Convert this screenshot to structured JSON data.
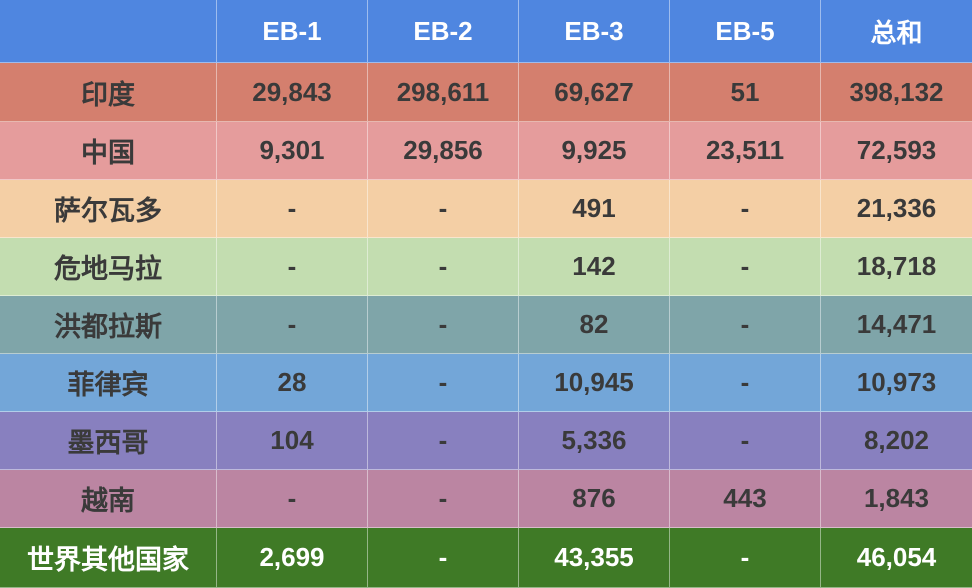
{
  "table": {
    "headers": [
      "",
      "EB-1",
      "EB-2",
      "EB-3",
      "EB-5",
      "总和"
    ],
    "rows": [
      {
        "country": "印度",
        "values": [
          "29,843",
          "298,611",
          "69,627",
          "51",
          "398,132"
        ]
      },
      {
        "country": "中国",
        "values": [
          "9,301",
          "29,856",
          "9,925",
          "23,511",
          "72,593"
        ]
      },
      {
        "country": "萨尔瓦多",
        "values": [
          "-",
          "-",
          "491",
          "-",
          "21,336"
        ]
      },
      {
        "country": "危地马拉",
        "values": [
          "-",
          "-",
          "142",
          "-",
          "18,718"
        ]
      },
      {
        "country": "洪都拉斯",
        "values": [
          "-",
          "-",
          "82",
          "-",
          "14,471"
        ]
      },
      {
        "country": "菲律宾",
        "values": [
          "28",
          "-",
          "10,945",
          "-",
          "10,973"
        ]
      },
      {
        "country": "墨西哥",
        "values": [
          "104",
          "-",
          "5,336",
          "-",
          "8,202"
        ]
      },
      {
        "country": "越南",
        "values": [
          "-",
          "-",
          "876",
          "443",
          "1,843"
        ]
      },
      {
        "country": "世界其他国家",
        "values": [
          "2,699",
          "-",
          "43,355",
          "-",
          "46,054"
        ]
      }
    ]
  },
  "colors": {
    "header": "#4f86e0",
    "rows": [
      "#d47f6e",
      "#e59c9c",
      "#f4cfa5",
      "#c3ddb0",
      "#7fa5a9",
      "#73a6d8",
      "#8880bf",
      "#bb85a2",
      "#3f7a26"
    ]
  }
}
